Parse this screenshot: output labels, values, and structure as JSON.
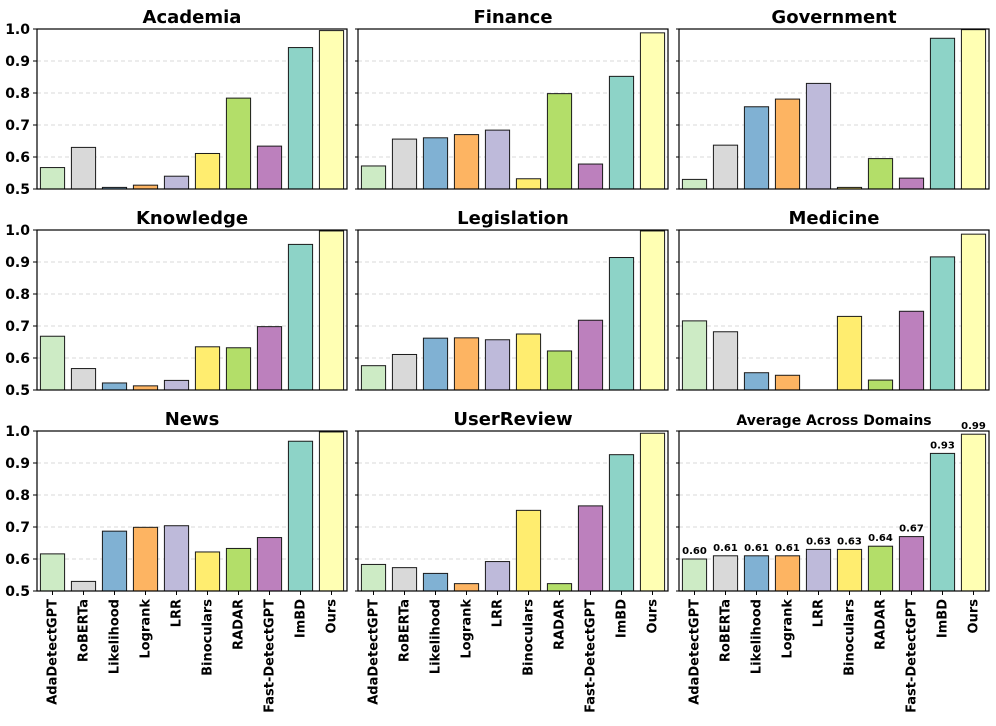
{
  "chart_data": {
    "type": "bar",
    "layout": "3x3 grid of bar charts",
    "ylim": [
      0.5,
      1.0
    ],
    "yticks": [
      "0.5",
      "0.6",
      "0.7",
      "0.8",
      "0.9",
      "1.0"
    ],
    "grid": "horizontal dashed",
    "categories": [
      "AdaDetectGPT",
      "RoBERTa",
      "Likelihood",
      "Logrank",
      "LRR",
      "Binoculars",
      "RADAR",
      "Fast-DetectGPT",
      "ImBD",
      "Ours"
    ],
    "colors": [
      "#cdebc5",
      "#d9d9d9",
      "#80b1d3",
      "#fdb462",
      "#bebada",
      "#ffed6f",
      "#b3de69",
      "#bc80bd",
      "#8dd3c7",
      "#ffffb3"
    ],
    "panels": [
      {
        "title": "Academia",
        "values": [
          0.567,
          0.63,
          0.505,
          0.512,
          0.54,
          0.611,
          0.784,
          0.634,
          0.942,
          0.995
        ]
      },
      {
        "title": "Finance",
        "values": [
          0.572,
          0.656,
          0.66,
          0.67,
          0.684,
          0.532,
          0.798,
          0.578,
          0.852,
          0.988
        ]
      },
      {
        "title": "Government",
        "values": [
          0.53,
          0.637,
          0.757,
          0.781,
          0.83,
          0.505,
          0.595,
          0.534,
          0.971,
          0.998
        ]
      },
      {
        "title": "Knowledge",
        "values": [
          0.668,
          0.567,
          0.522,
          0.513,
          0.53,
          0.635,
          0.632,
          0.698,
          0.955,
          0.997
        ]
      },
      {
        "title": "Legislation",
        "values": [
          0.576,
          0.611,
          0.662,
          0.663,
          0.657,
          0.675,
          0.622,
          0.718,
          0.914,
          0.997
        ]
      },
      {
        "title": "Medicine",
        "values": [
          0.716,
          0.682,
          0.554,
          0.546,
          0.5,
          0.73,
          0.531,
          0.746,
          0.916,
          0.987
        ]
      },
      {
        "title": "News",
        "values": [
          0.616,
          0.53,
          0.687,
          0.699,
          0.704,
          0.622,
          0.633,
          0.667,
          0.968,
          0.997
        ]
      },
      {
        "title": "UserReview",
        "values": [
          0.583,
          0.573,
          0.555,
          0.523,
          0.592,
          0.752,
          0.523,
          0.766,
          0.926,
          0.993
        ]
      },
      {
        "title": "Average Across Domains",
        "values": [
          0.6,
          0.61,
          0.61,
          0.61,
          0.63,
          0.63,
          0.64,
          0.67,
          0.93,
          0.99
        ],
        "data_labels": [
          "0.60",
          "0.61",
          "0.61",
          "0.61",
          "0.63",
          "0.63",
          "0.64",
          "0.67",
          "0.93",
          "0.99"
        ]
      }
    ]
  }
}
